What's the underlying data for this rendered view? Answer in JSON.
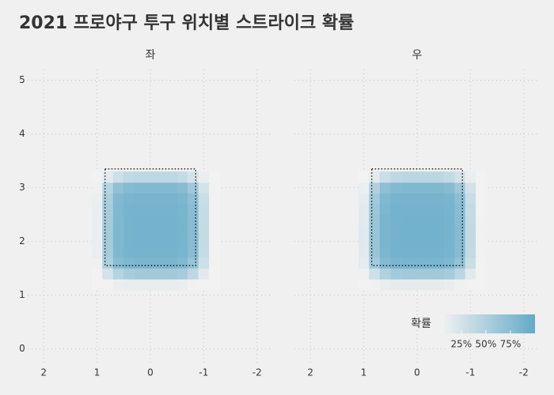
{
  "title": "2021 프로야구 투구 위치별 스트라이크 확률",
  "chart_data": [
    {
      "type": "heatmap",
      "facet": "좌",
      "x": [
        1.0,
        0.8,
        0.6,
        0.4,
        0.2,
        0,
        -0.2,
        -0.4,
        -0.6,
        -0.8,
        -1.0,
        -1.2
      ],
      "y": [
        1.2,
        1.4,
        1.6,
        1.8,
        2.0,
        2.2,
        2.4,
        2.6,
        2.8,
        3.0,
        3.2
      ],
      "values": [
        [
          2,
          5,
          10,
          12,
          12,
          12,
          12,
          12,
          10,
          6,
          3,
          1
        ],
        [
          5,
          25,
          45,
          55,
          58,
          58,
          58,
          58,
          55,
          40,
          15,
          3
        ],
        [
          8,
          50,
          75,
          82,
          84,
          84,
          84,
          84,
          80,
          65,
          30,
          5
        ],
        [
          10,
          55,
          82,
          88,
          88,
          88,
          88,
          88,
          86,
          75,
          35,
          5
        ],
        [
          10,
          57,
          83,
          88,
          89,
          89,
          89,
          89,
          87,
          76,
          36,
          5
        ],
        [
          10,
          57,
          83,
          88,
          89,
          89,
          89,
          89,
          87,
          76,
          36,
          5
        ],
        [
          10,
          56,
          83,
          88,
          89,
          89,
          89,
          89,
          87,
          76,
          35,
          5
        ],
        [
          10,
          55,
          82,
          88,
          88,
          88,
          88,
          88,
          86,
          75,
          35,
          5
        ],
        [
          9,
          52,
          80,
          86,
          87,
          87,
          87,
          87,
          84,
          72,
          32,
          5
        ],
        [
          8,
          45,
          70,
          78,
          80,
          80,
          80,
          80,
          76,
          60,
          25,
          4
        ],
        [
          3,
          15,
          30,
          38,
          40,
          40,
          40,
          40,
          36,
          25,
          10,
          2
        ]
      ],
      "zone": {
        "x": [
          0.85,
          -0.85
        ],
        "y": [
          1.55,
          3.35
        ]
      },
      "xlim": [
        2.3,
        -2.3
      ],
      "ylim": [
        -0.3,
        5.2
      ],
      "xticks": [
        2,
        1,
        0,
        -1,
        -2
      ],
      "yticks": [
        0,
        1,
        2,
        3,
        4,
        5
      ]
    },
    {
      "type": "heatmap",
      "facet": "우",
      "x": [
        1.0,
        0.8,
        0.6,
        0.4,
        0.2,
        0,
        -0.2,
        -0.4,
        -0.6,
        -0.8,
        -1.0,
        -1.2
      ],
      "y": [
        1.2,
        1.4,
        1.6,
        1.8,
        2.0,
        2.2,
        2.4,
        2.6,
        2.8,
        3.0,
        3.2
      ],
      "values": [
        [
          3,
          6,
          11,
          13,
          13,
          13,
          13,
          13,
          11,
          7,
          3,
          1
        ],
        [
          8,
          30,
          48,
          57,
          59,
          59,
          59,
          59,
          56,
          42,
          16,
          3
        ],
        [
          14,
          58,
          78,
          84,
          85,
          85,
          85,
          85,
          82,
          68,
          32,
          5
        ],
        [
          16,
          64,
          84,
          89,
          89,
          89,
          89,
          89,
          87,
          77,
          37,
          6
        ],
        [
          17,
          65,
          85,
          89,
          90,
          90,
          90,
          90,
          88,
          78,
          38,
          6
        ],
        [
          17,
          65,
          85,
          89,
          90,
          90,
          90,
          90,
          88,
          78,
          38,
          6
        ],
        [
          16,
          64,
          85,
          89,
          90,
          90,
          90,
          90,
          88,
          77,
          37,
          6
        ],
        [
          15,
          62,
          84,
          89,
          89,
          89,
          89,
          89,
          87,
          76,
          36,
          5
        ],
        [
          13,
          58,
          81,
          87,
          88,
          88,
          88,
          88,
          85,
          73,
          33,
          5
        ],
        [
          10,
          48,
          72,
          79,
          81,
          81,
          81,
          81,
          77,
          61,
          26,
          4
        ],
        [
          4,
          16,
          31,
          39,
          41,
          41,
          41,
          41,
          37,
          26,
          10,
          2
        ]
      ],
      "zone": {
        "x": [
          0.85,
          -0.85
        ],
        "y": [
          1.55,
          3.35
        ]
      },
      "xlim": [
        2.3,
        -2.3
      ],
      "ylim": [
        -0.3,
        5.2
      ],
      "xticks": [
        2,
        1,
        0,
        -1,
        -2
      ],
      "yticks": [
        0,
        1,
        2,
        3,
        4,
        5
      ]
    }
  ],
  "colorbar": {
    "title": "확률",
    "clim": [
      5,
      100
    ],
    "colors": [
      "#f2f2f2",
      "#64aac8"
    ],
    "ticks": [
      {
        "value": 25,
        "label": "25%"
      },
      {
        "value": 50,
        "label": "50%"
      },
      {
        "value": 75,
        "label": "75%"
      }
    ]
  }
}
